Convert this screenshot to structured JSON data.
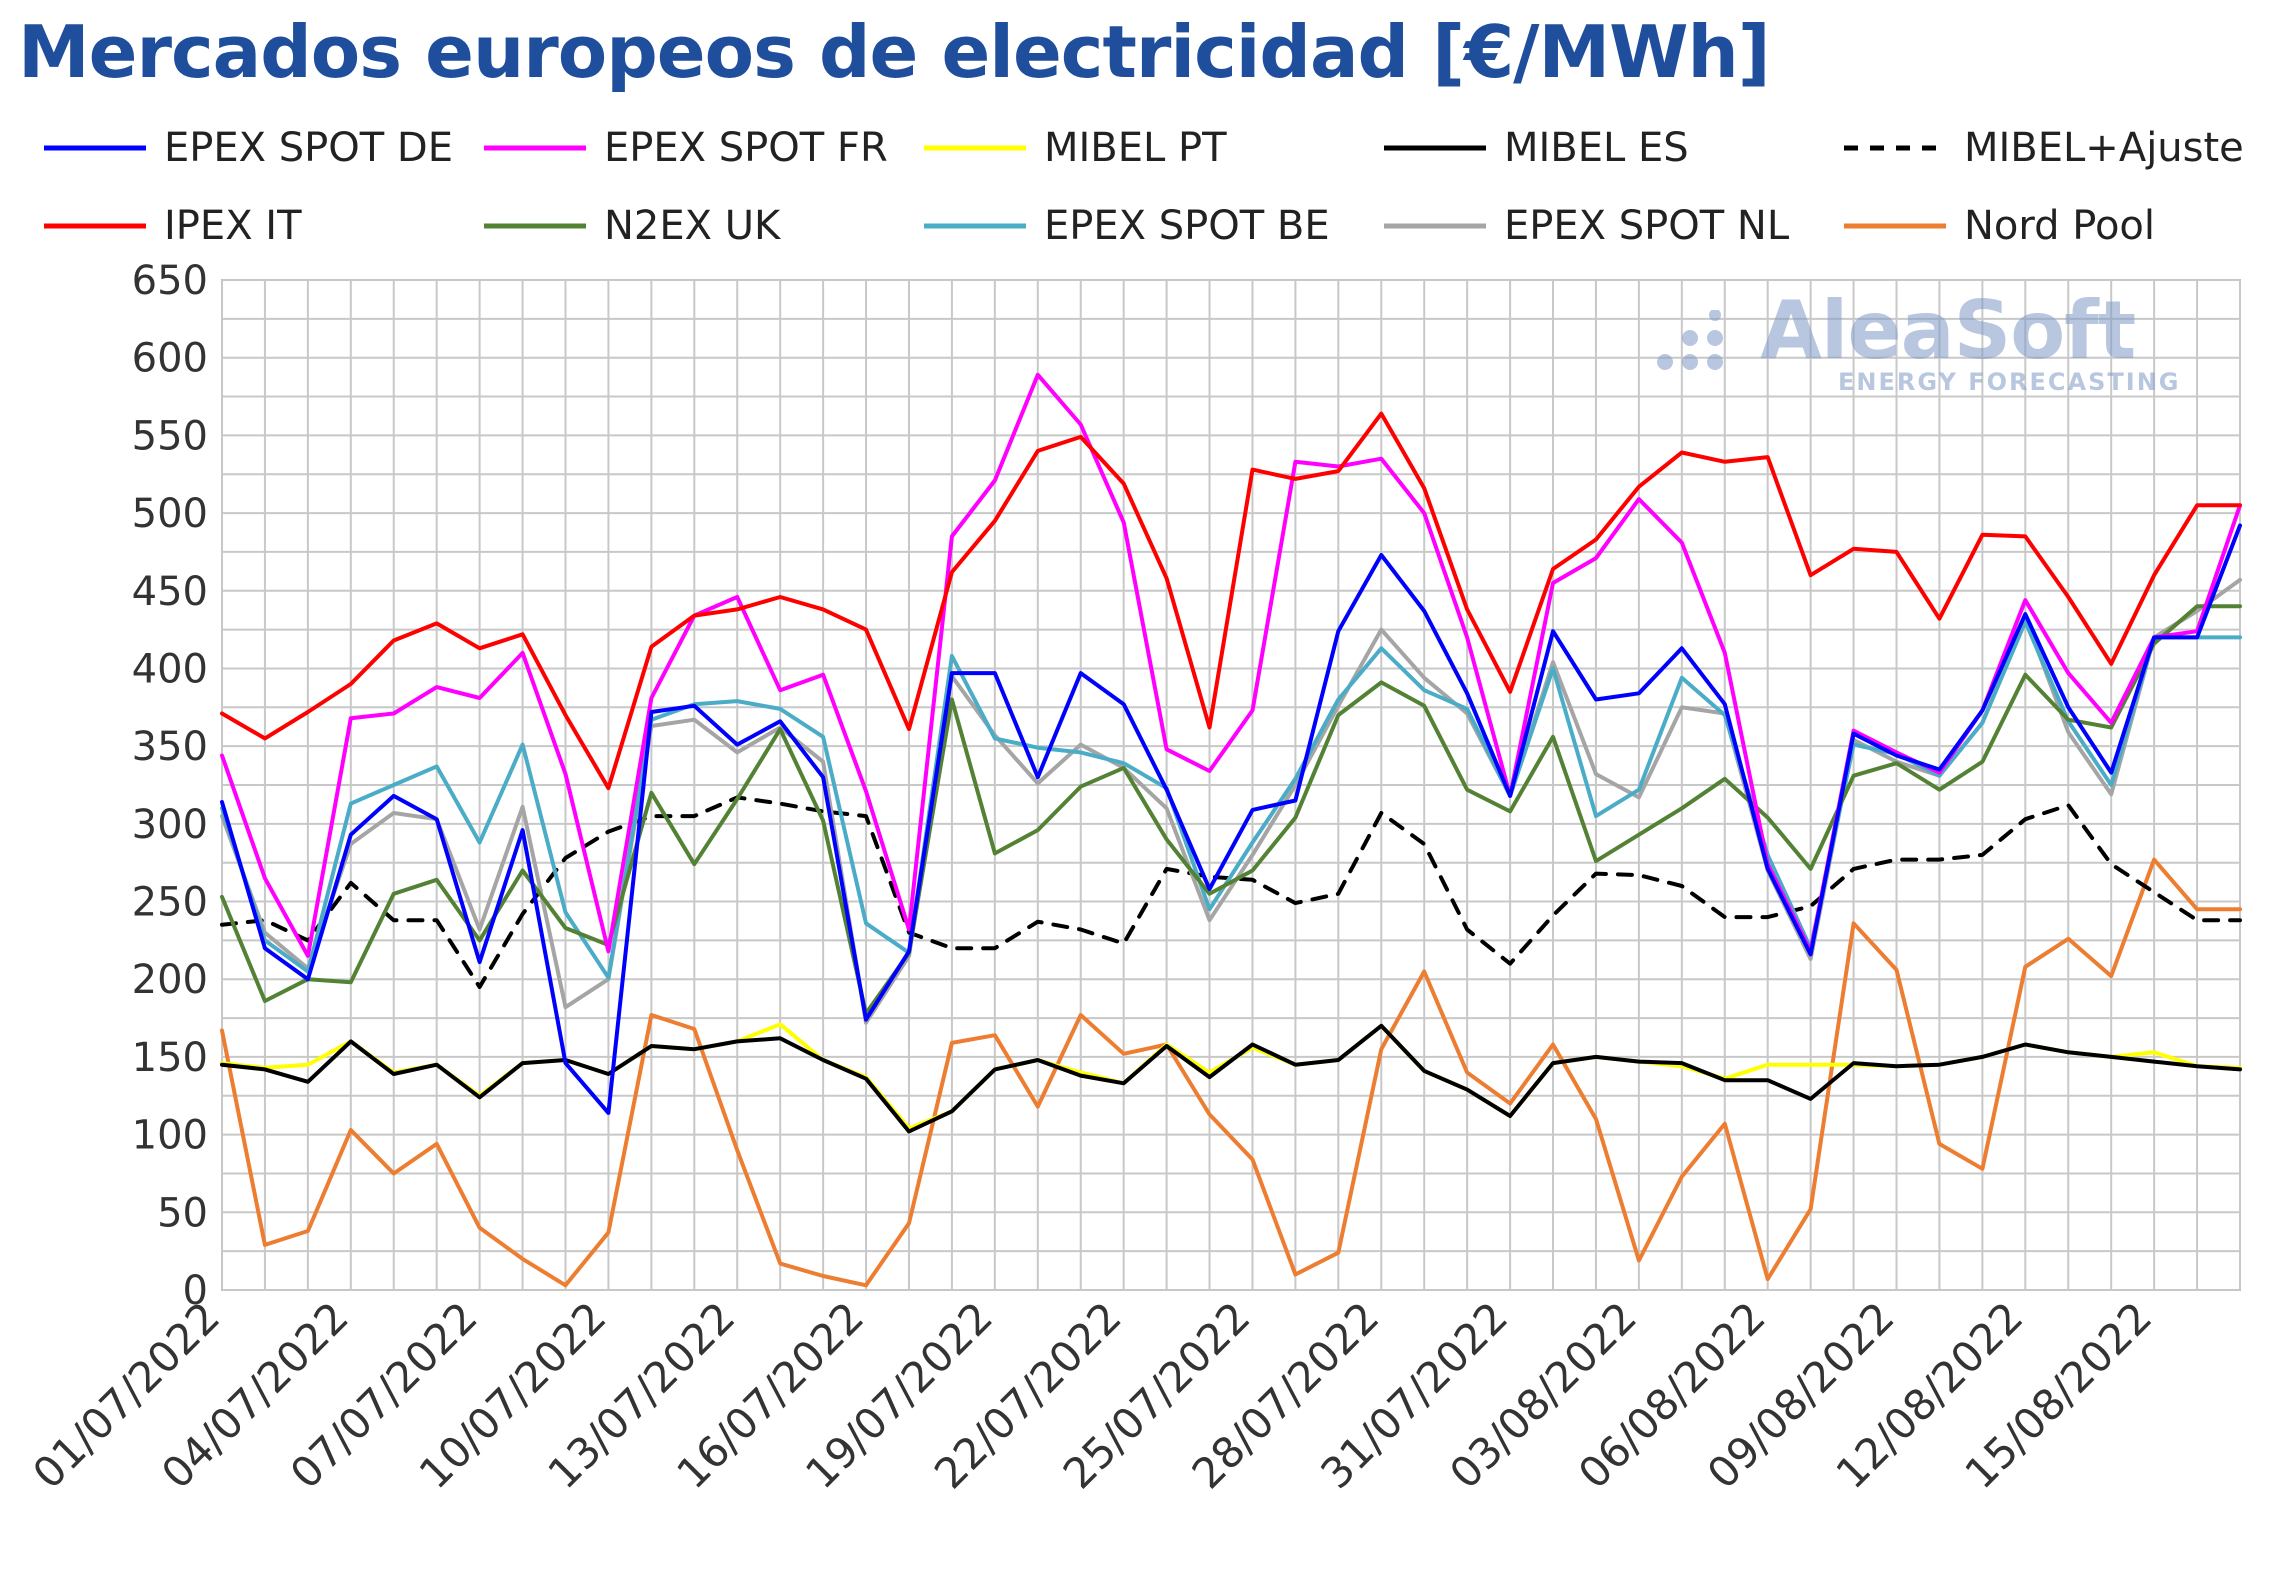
{
  "title": "Mercados europeos de electricidad [€/MWh]",
  "logo": {
    "name": "AleaSoft",
    "tagline": "ENERGY FORECASTING"
  },
  "chart_data": {
    "type": "line",
    "title": "Mercados europeos de electricidad [€/MWh]",
    "xlabel": "",
    "ylabel": "",
    "ylim": [
      0,
      650
    ],
    "yticks": [
      0,
      50,
      100,
      150,
      200,
      250,
      300,
      350,
      400,
      450,
      500,
      550,
      600,
      650
    ],
    "grid": true,
    "legend_position": "top",
    "x_tick_labels": [
      "01/07/2022",
      "04/07/2022",
      "07/07/2022",
      "10/07/2022",
      "13/07/2022",
      "16/07/2022",
      "19/07/2022",
      "22/07/2022",
      "25/07/2022",
      "28/07/2022",
      "31/07/2022",
      "03/08/2022",
      "06/08/2022",
      "09/08/2022",
      "12/08/2022",
      "15/08/2022"
    ],
    "x": [
      "01/07/2022",
      "02/07/2022",
      "03/07/2022",
      "04/07/2022",
      "05/07/2022",
      "06/07/2022",
      "07/07/2022",
      "08/07/2022",
      "09/07/2022",
      "10/07/2022",
      "11/07/2022",
      "12/07/2022",
      "13/07/2022",
      "14/07/2022",
      "15/07/2022",
      "16/07/2022",
      "17/07/2022",
      "18/07/2022",
      "19/07/2022",
      "20/07/2022",
      "21/07/2022",
      "22/07/2022",
      "23/07/2022",
      "24/07/2022",
      "25/07/2022",
      "26/07/2022",
      "27/07/2022",
      "28/07/2022",
      "29/07/2022",
      "30/07/2022",
      "31/07/2022",
      "01/08/2022",
      "02/08/2022",
      "03/08/2022",
      "04/08/2022",
      "05/08/2022",
      "06/08/2022",
      "07/08/2022",
      "08/08/2022",
      "09/08/2022",
      "10/08/2022",
      "11/08/2022",
      "12/08/2022",
      "13/08/2022",
      "14/08/2022",
      "15/08/2022",
      "16/08/2022",
      "17/08/2022"
    ],
    "series": [
      {
        "name": "EPEX SPOT DE",
        "color": "#0000ff",
        "dash": false,
        "row": 0,
        "col": 0,
        "values": [
          314,
          220,
          200,
          293,
          318,
          303,
          211,
          296,
          146,
          114,
          372,
          376,
          351,
          366,
          330,
          174,
          218,
          397,
          397,
          330,
          397,
          377,
          322,
          258,
          309,
          315,
          424,
          473,
          437,
          384,
          318,
          424,
          380,
          384,
          413,
          377,
          271,
          216,
          358,
          344,
          335,
          373,
          435,
          375,
          333,
          420,
          420,
          492
        ]
      },
      {
        "name": "EPEX SPOT FR",
        "color": "#ff00ff",
        "dash": false,
        "row": 0,
        "col": 1,
        "values": [
          344,
          265,
          215,
          368,
          371,
          388,
          381,
          410,
          332,
          218,
          381,
          434,
          446,
          386,
          396,
          321,
          232,
          485,
          521,
          589,
          557,
          494,
          348,
          334,
          373,
          533,
          530,
          535,
          500,
          420,
          318,
          455,
          471,
          509,
          481,
          410,
          274,
          218,
          360,
          346,
          333,
          373,
          444,
          397,
          365,
          420,
          424,
          505
        ]
      },
      {
        "name": "MIBEL PT",
        "color": "#ffff00",
        "dash": false,
        "row": 0,
        "col": 2,
        "values": [
          146,
          143,
          145,
          160,
          140,
          145,
          125,
          146,
          148,
          139,
          157,
          155,
          160,
          171,
          148,
          137,
          104,
          115,
          142,
          148,
          140,
          133,
          158,
          140,
          156,
          145,
          148,
          170,
          141,
          129,
          112,
          146,
          150,
          147,
          144,
          136,
          145,
          145,
          145,
          144,
          145,
          150,
          158,
          153,
          150,
          153,
          144,
          143
        ]
      },
      {
        "name": "MIBEL ES",
        "color": "#000000",
        "dash": false,
        "row": 0,
        "col": 3,
        "values": [
          145,
          142,
          134,
          160,
          139,
          145,
          124,
          146,
          148,
          139,
          157,
          155,
          160,
          162,
          148,
          136,
          102,
          115,
          142,
          148,
          138,
          133,
          157,
          137,
          158,
          145,
          148,
          170,
          141,
          129,
          112,
          146,
          150,
          147,
          146,
          135,
          135,
          123,
          146,
          144,
          145,
          150,
          158,
          153,
          150,
          147,
          144,
          142
        ]
      },
      {
        "name": "MIBEL+Ajuste",
        "color": "#000000",
        "dash": true,
        "row": 0,
        "col": 4,
        "values": [
          235,
          238,
          225,
          262,
          238,
          238,
          195,
          242,
          278,
          295,
          305,
          305,
          317,
          313,
          308,
          305,
          230,
          220,
          220,
          237,
          232,
          223,
          271,
          266,
          264,
          249,
          255,
          307,
          287,
          232,
          210,
          241,
          268,
          267,
          260,
          240,
          240,
          247,
          271,
          277,
          277,
          280,
          303,
          312,
          274,
          256,
          238,
          238
        ]
      },
      {
        "name": "IPEX IT",
        "color": "#ff0000",
        "dash": false,
        "row": 1,
        "col": 0,
        "values": [
          371,
          355,
          372,
          390,
          418,
          429,
          413,
          422,
          370,
          323,
          414,
          434,
          438,
          446,
          438,
          425,
          361,
          462,
          495,
          540,
          549,
          519,
          458,
          362,
          528,
          522,
          527,
          564,
          516,
          438,
          385,
          464,
          483,
          517,
          539,
          533,
          536,
          460,
          477,
          475,
          432,
          486,
          485,
          446,
          403,
          460,
          505,
          505
        ]
      },
      {
        "name": "N2EX UK",
        "color": "#548235",
        "dash": false,
        "row": 1,
        "col": 1,
        "values": [
          253,
          186,
          200,
          198,
          255,
          264,
          225,
          270,
          233,
          222,
          320,
          274,
          316,
          361,
          302,
          178,
          217,
          380,
          281,
          296,
          324,
          336,
          290,
          255,
          270,
          304,
          370,
          391,
          376,
          322,
          308,
          356,
          276,
          293,
          310,
          329,
          304,
          271,
          331,
          339,
          322,
          340,
          396,
          367,
          362,
          416,
          440,
          440
        ]
      },
      {
        "name": "EPEX SPOT BE",
        "color": "#4aacc6",
        "dash": false,
        "row": 1,
        "col": 2,
        "values": [
          310,
          225,
          205,
          313,
          325,
          337,
          288,
          351,
          243,
          201,
          367,
          377,
          379,
          374,
          356,
          236,
          217,
          408,
          355,
          349,
          346,
          339,
          323,
          245,
          288,
          329,
          380,
          413,
          386,
          374,
          318,
          400,
          305,
          322,
          394,
          370,
          280,
          220,
          351,
          345,
          331,
          365,
          430,
          366,
          325,
          420,
          420,
          420
        ]
      },
      {
        "name": "EPEX SPOT NL",
        "color": "#a5a5a5",
        "dash": false,
        "row": 1,
        "col": 3,
        "values": [
          305,
          230,
          207,
          287,
          307,
          303,
          232,
          311,
          182,
          200,
          363,
          367,
          346,
          362,
          340,
          172,
          215,
          395,
          357,
          326,
          351,
          336,
          310,
          238,
          280,
          325,
          376,
          425,
          394,
          371,
          318,
          404,
          332,
          317,
          375,
          371,
          270,
          213,
          354,
          340,
          331,
          365,
          433,
          359,
          319,
          420,
          437,
          457
        ]
      },
      {
        "name": "Nord Pool",
        "color": "#ed7d31",
        "dash": false,
        "row": 1,
        "col": 4,
        "values": [
          167,
          29,
          38,
          103,
          75,
          94,
          40,
          20,
          3,
          37,
          177,
          168,
          90,
          17,
          9,
          3,
          43,
          159,
          164,
          118,
          177,
          152,
          158,
          113,
          84,
          10,
          24,
          155,
          205,
          140,
          120,
          158,
          110,
          19,
          73,
          107,
          7,
          52,
          236,
          206,
          94,
          78,
          208,
          226,
          202,
          277,
          245,
          245
        ]
      }
    ]
  }
}
